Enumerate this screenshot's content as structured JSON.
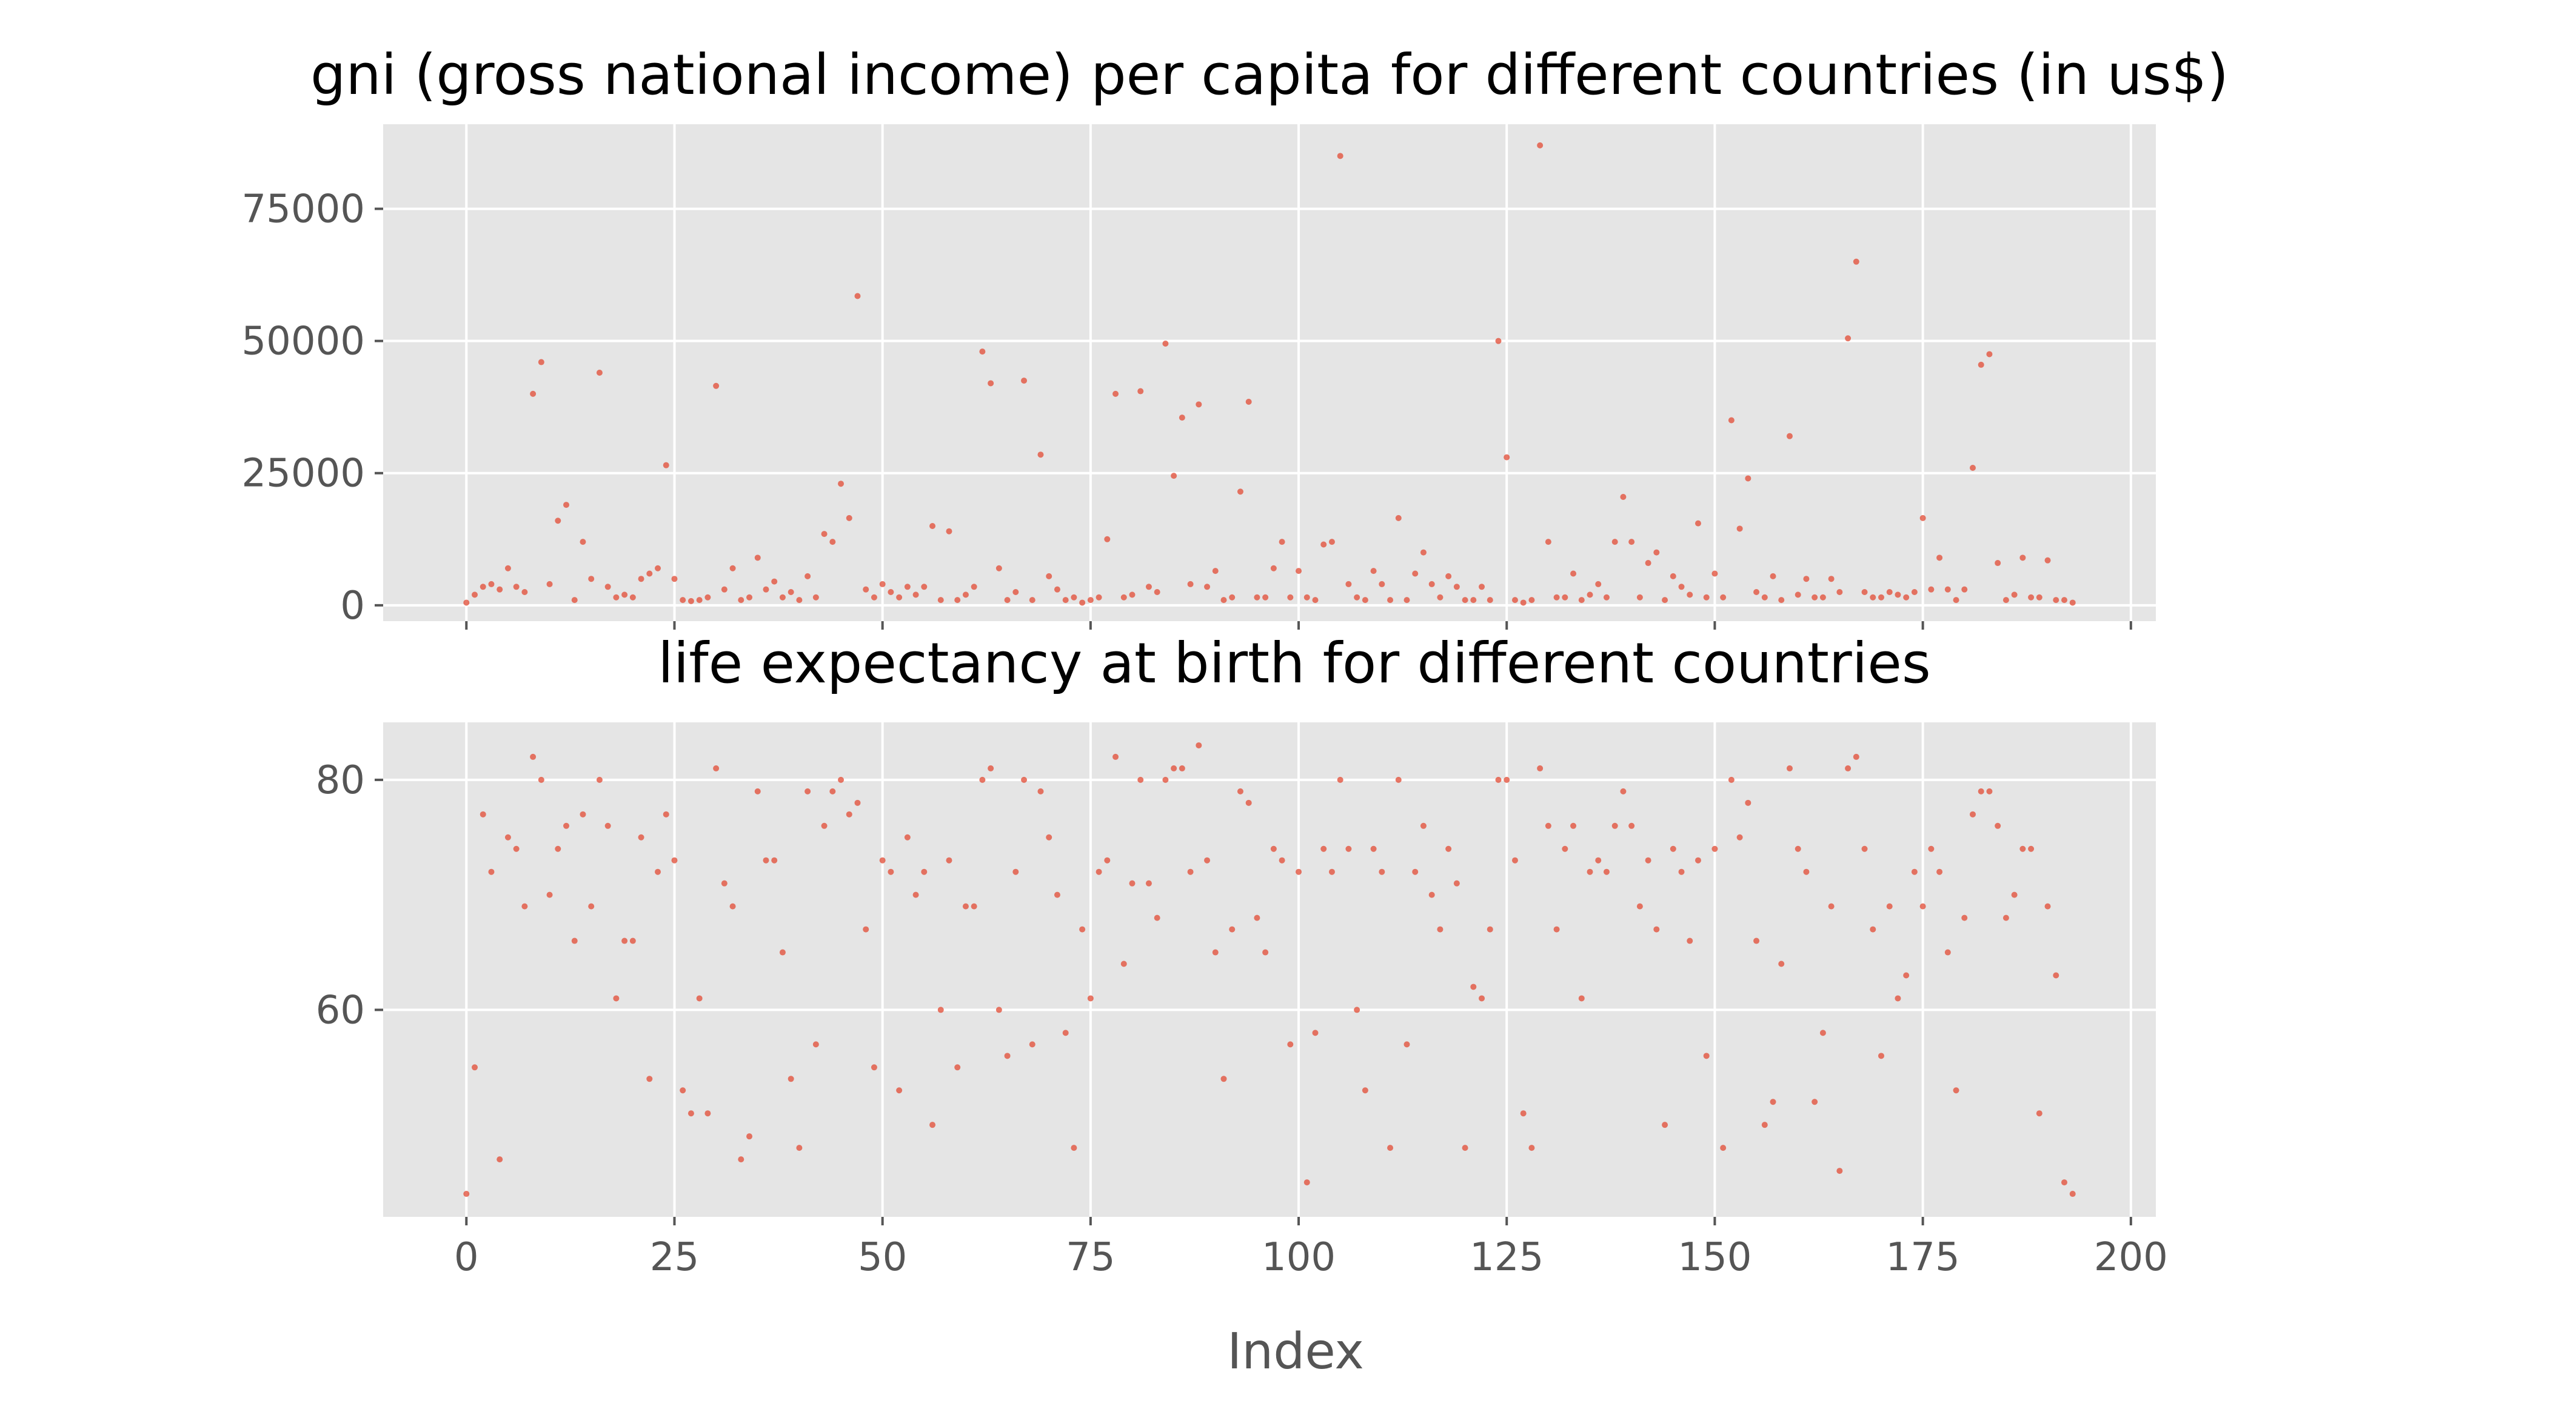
{
  "chart_data": [
    {
      "type": "scatter",
      "title": "gni (gross national income) per capita for different countries (in us$)",
      "xlabel": "",
      "ylabel": "",
      "xlim": [
        -10,
        203
      ],
      "ylim": [
        -3000,
        91000
      ],
      "xticks": [
        0,
        25,
        50,
        75,
        100,
        125,
        150,
        175,
        200
      ],
      "xtick_labels_visible": false,
      "yticks": [
        0,
        25000,
        50000,
        75000
      ],
      "ytick_labels": [
        "0",
        "25000",
        "50000",
        "75000"
      ],
      "grid": true,
      "color": "#e24a33",
      "x": [
        0,
        1,
        2,
        3,
        4,
        5,
        6,
        7,
        8,
        9,
        10,
        11,
        12,
        13,
        14,
        15,
        16,
        17,
        18,
        19,
        20,
        21,
        22,
        23,
        24,
        25,
        26,
        27,
        28,
        29,
        30,
        31,
        32,
        33,
        34,
        35,
        36,
        37,
        38,
        39,
        40,
        41,
        42,
        43,
        44,
        45,
        46,
        47,
        48,
        49,
        50,
        51,
        52,
        53,
        54,
        55,
        56,
        57,
        58,
        59,
        60,
        61,
        62,
        63,
        64,
        65,
        66,
        67,
        68,
        69,
        70,
        71,
        72,
        73,
        74,
        75,
        76,
        77,
        78,
        79,
        80,
        81,
        82,
        83,
        84,
        85,
        86,
        87,
        88,
        89,
        90,
        91,
        92,
        93,
        94,
        95,
        96,
        97,
        98,
        99,
        100,
        101,
        102,
        103,
        104,
        105,
        106,
        107,
        108,
        109,
        110,
        111,
        112,
        113,
        114,
        115,
        116,
        117,
        118,
        119,
        120,
        121,
        122,
        123,
        124,
        125,
        126,
        127,
        128,
        129,
        130,
        131,
        132,
        133,
        134,
        135,
        136,
        137,
        138,
        139,
        140,
        141,
        142,
        143,
        144,
        145,
        146,
        147,
        148,
        149,
        150,
        151,
        152,
        153,
        154,
        155,
        156,
        157,
        158,
        159,
        160,
        161,
        162,
        163,
        164,
        165,
        166,
        167,
        168,
        169,
        170,
        171,
        172,
        173,
        174,
        175,
        176,
        177,
        178,
        179,
        180,
        181,
        182,
        183,
        184,
        185,
        186,
        187,
        188,
        189,
        190,
        191,
        192,
        193
      ],
      "y": [
        500,
        2000,
        3500,
        4000,
        3000,
        7000,
        3500,
        2500,
        40000,
        46000,
        4000,
        16000,
        19000,
        1000,
        12000,
        5000,
        44000,
        3500,
        1500,
        2000,
        1500,
        5000,
        6000,
        7000,
        26500,
        5000,
        1000,
        800,
        1000,
        1500,
        41500,
        3000,
        7000,
        1000,
        1500,
        9000,
        3000,
        4500,
        1500,
        2500,
        1000,
        5500,
        1500,
        13500,
        12000,
        23000,
        16500,
        58500,
        3000,
        1500,
        4000,
        2500,
        1500,
        3500,
        2000,
        3500,
        15000,
        1000,
        14000,
        1000,
        2000,
        3500,
        48000,
        42000,
        7000,
        1000,
        2500,
        42500,
        1000,
        28500,
        5500,
        3000,
        1000,
        1500,
        500,
        1000,
        1500,
        12500,
        40000,
        1500,
        2000,
        40500,
        3500,
        2500,
        49500,
        24500,
        35500,
        4000,
        38000,
        3500,
        6500,
        1000,
        1500,
        21500,
        38500,
        1500,
        1500,
        7000,
        12000,
        1500,
        6500,
        1500,
        1000,
        11500,
        12000,
        85000,
        4000,
        1500,
        1000,
        6500,
        4000,
        1000,
        16500,
        1000,
        6000,
        10000,
        4000,
        1500,
        5500,
        3500,
        1000,
        1000,
        3500,
        1000,
        50000,
        28000,
        1000,
        500,
        1000,
        87000,
        12000,
        1500,
        1500,
        6000,
        1000,
        2000,
        4000,
        1500,
        12000,
        20500,
        12000,
        1500,
        8000,
        10000,
        1000,
        5500,
        3500,
        2000,
        15500,
        1500,
        6000,
        1500,
        35000,
        14500,
        24000,
        2500,
        1500,
        5500,
        1000,
        32000,
        2000,
        5000,
        1500,
        1500,
        5000,
        2500,
        50500,
        65000,
        2500,
        1500,
        1500,
        2500,
        2000,
        1500,
        2500,
        16500,
        3000,
        9000,
        3000,
        1000,
        3000,
        26000,
        45500,
        47500,
        8000,
        1000,
        2000,
        9000,
        1500,
        1500,
        8500,
        1000,
        1000,
        500
      ]
    },
    {
      "type": "scatter",
      "title": "life expectancy at birth for different countries",
      "xlabel": "Index",
      "ylabel": "",
      "xlim": [
        -10,
        203
      ],
      "ylim": [
        42,
        85
      ],
      "xticks": [
        0,
        25,
        50,
        75,
        100,
        125,
        150,
        175,
        200
      ],
      "xtick_labels": [
        "0",
        "25",
        "50",
        "75",
        "100",
        "125",
        "150",
        "175",
        "200"
      ],
      "yticks": [
        60,
        80
      ],
      "ytick_labels": [
        "60",
        "80"
      ],
      "grid": true,
      "color": "#e24a33",
      "x": [
        0,
        1,
        2,
        3,
        4,
        5,
        6,
        7,
        8,
        9,
        10,
        11,
        12,
        13,
        14,
        15,
        16,
        17,
        18,
        19,
        20,
        21,
        22,
        23,
        24,
        25,
        26,
        27,
        28,
        29,
        30,
        31,
        32,
        33,
        34,
        35,
        36,
        37,
        38,
        39,
        40,
        41,
        42,
        43,
        44,
        45,
        46,
        47,
        48,
        49,
        50,
        51,
        52,
        53,
        54,
        55,
        56,
        57,
        58,
        59,
        60,
        61,
        62,
        63,
        64,
        65,
        66,
        67,
        68,
        69,
        70,
        71,
        72,
        73,
        74,
        75,
        76,
        77,
        78,
        79,
        80,
        81,
        82,
        83,
        84,
        85,
        86,
        87,
        88,
        89,
        90,
        91,
        92,
        93,
        94,
        95,
        96,
        97,
        98,
        99,
        100,
        101,
        102,
        103,
        104,
        105,
        106,
        107,
        108,
        109,
        110,
        111,
        112,
        113,
        114,
        115,
        116,
        117,
        118,
        119,
        120,
        121,
        122,
        123,
        124,
        125,
        126,
        127,
        128,
        129,
        130,
        131,
        132,
        133,
        134,
        135,
        136,
        137,
        138,
        139,
        140,
        141,
        142,
        143,
        144,
        145,
        146,
        147,
        148,
        149,
        150,
        151,
        152,
        153,
        154,
        155,
        156,
        157,
        158,
        159,
        160,
        161,
        162,
        163,
        164,
        165,
        166,
        167,
        168,
        169,
        170,
        171,
        172,
        173,
        174,
        175,
        176,
        177,
        178,
        179,
        180,
        181,
        182,
        183,
        184,
        185,
        186,
        187,
        188,
        189,
        190,
        191,
        192,
        193
      ],
      "y": [
        44,
        55,
        77,
        72,
        47,
        75,
        74,
        69,
        82,
        80,
        70,
        74,
        76,
        66,
        77,
        69,
        80,
        76,
        61,
        66,
        66,
        75,
        54,
        72,
        77,
        73,
        53,
        51,
        61,
        51,
        81,
        71,
        69,
        47,
        49,
        79,
        73,
        73,
        65,
        54,
        48,
        79,
        57,
        76,
        79,
        80,
        77,
        78,
        67,
        55,
        73,
        72,
        53,
        75,
        70,
        72,
        50,
        60,
        73,
        55,
        69,
        69,
        80,
        81,
        60,
        56,
        72,
        80,
        57,
        79,
        75,
        70,
        58,
        48,
        67,
        61,
        72,
        73,
        82,
        64,
        71,
        80,
        71,
        68,
        80,
        81,
        81,
        72,
        83,
        73,
        65,
        54,
        67,
        79,
        78,
        68,
        65,
        74,
        73,
        57,
        72,
        45,
        58,
        74,
        72,
        80,
        74,
        60,
        53,
        74,
        72,
        48,
        80,
        57,
        72,
        76,
        70,
        67,
        74,
        71,
        48,
        62,
        61,
        67,
        80,
        80,
        73,
        51,
        48,
        81,
        76,
        67,
        74,
        76,
        61,
        72,
        73,
        72,
        76,
        79,
        76,
        69,
        73,
        67,
        50,
        74,
        72,
        66,
        73,
        56,
        74,
        48,
        80,
        75,
        78,
        66,
        50,
        52,
        64,
        81,
        74,
        72,
        52,
        58,
        69,
        46,
        81,
        82,
        74,
        67,
        56,
        69,
        61,
        63,
        72,
        69,
        74,
        72,
        65,
        53,
        68,
        77,
        79,
        79,
        76,
        68,
        70,
        74,
        74,
        51,
        69,
        63,
        45,
        44
      ]
    }
  ]
}
